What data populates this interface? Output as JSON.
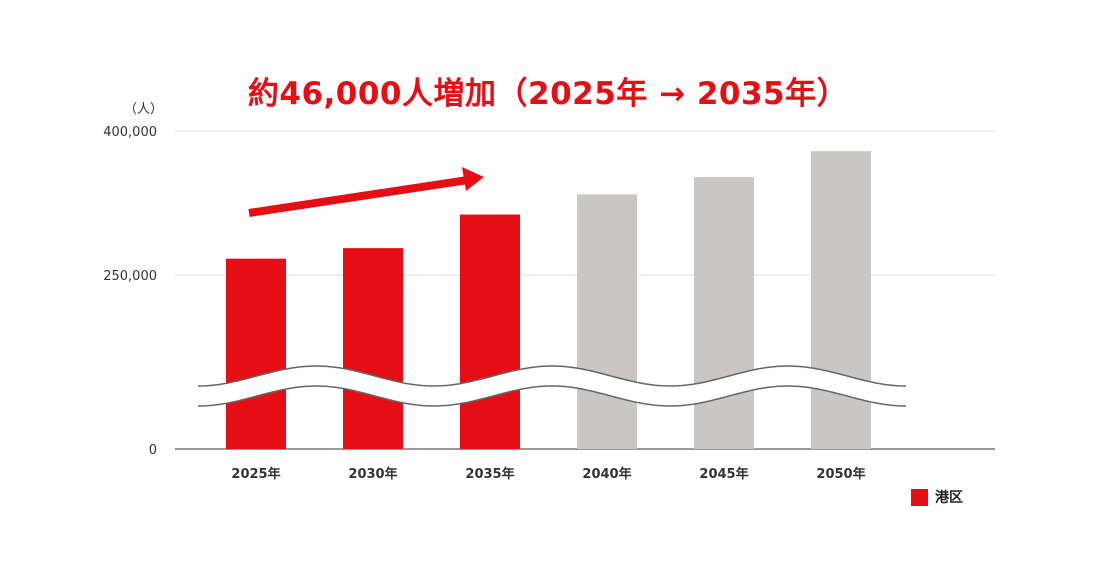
{
  "chart_data": {
    "type": "bar",
    "title": "約46,000人増加（2025年 → 2035年）",
    "ylabel": "（人）",
    "y_ticks": [
      "0",
      "250,000",
      "400,000"
    ],
    "categories": [
      "2025年",
      "2030年",
      "2035年",
      "2040年",
      "2045年",
      "2050年"
    ],
    "series": [
      {
        "name": "港区",
        "values": [
          267000,
          278000,
          313000,
          334000,
          352000,
          379000
        ]
      }
    ],
    "highlighted_categories": [
      "2025年",
      "2030年",
      "2035年"
    ],
    "axis_break": true,
    "trend_arrow": {
      "from": "2025年",
      "to": "2035年"
    },
    "colors": {
      "highlight": "#e60e14",
      "projection": "#c8c7c6",
      "arrow": "#e60e14"
    },
    "grid": true,
    "legend_position": "bottom-right"
  }
}
